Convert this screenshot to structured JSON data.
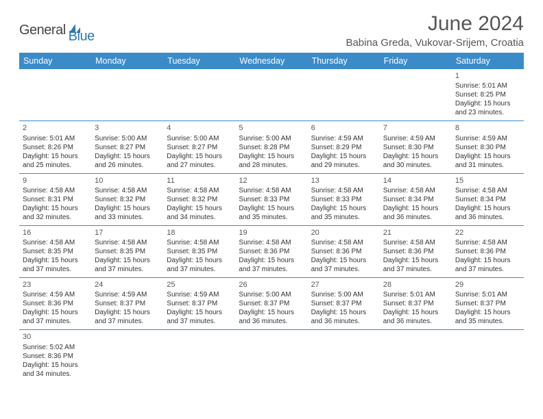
{
  "logo": {
    "general": "General",
    "blue": "Blue",
    "accent_color": "#2a7ab8"
  },
  "title": "June 2024",
  "location": "Babina Greda, Vukovar-Srijem, Croatia",
  "colors": {
    "header_bg": "#3b8bc8",
    "header_text": "#ffffff",
    "row_divider": "#3b8bc8",
    "text": "#333333",
    "title_text": "#555555"
  },
  "day_headers": [
    "Sunday",
    "Monday",
    "Tuesday",
    "Wednesday",
    "Thursday",
    "Friday",
    "Saturday"
  ],
  "weeks": [
    [
      null,
      null,
      null,
      null,
      null,
      null,
      {
        "n": "1",
        "sr": "5:01 AM",
        "ss": "8:25 PM",
        "dl1": "15 hours",
        "dl2": "and 23 minutes."
      }
    ],
    [
      {
        "n": "2",
        "sr": "5:01 AM",
        "ss": "8:26 PM",
        "dl1": "15 hours",
        "dl2": "and 25 minutes."
      },
      {
        "n": "3",
        "sr": "5:00 AM",
        "ss": "8:27 PM",
        "dl1": "15 hours",
        "dl2": "and 26 minutes."
      },
      {
        "n": "4",
        "sr": "5:00 AM",
        "ss": "8:27 PM",
        "dl1": "15 hours",
        "dl2": "and 27 minutes."
      },
      {
        "n": "5",
        "sr": "5:00 AM",
        "ss": "8:28 PM",
        "dl1": "15 hours",
        "dl2": "and 28 minutes."
      },
      {
        "n": "6",
        "sr": "4:59 AM",
        "ss": "8:29 PM",
        "dl1": "15 hours",
        "dl2": "and 29 minutes."
      },
      {
        "n": "7",
        "sr": "4:59 AM",
        "ss": "8:30 PM",
        "dl1": "15 hours",
        "dl2": "and 30 minutes."
      },
      {
        "n": "8",
        "sr": "4:59 AM",
        "ss": "8:30 PM",
        "dl1": "15 hours",
        "dl2": "and 31 minutes."
      }
    ],
    [
      {
        "n": "9",
        "sr": "4:58 AM",
        "ss": "8:31 PM",
        "dl1": "15 hours",
        "dl2": "and 32 minutes."
      },
      {
        "n": "10",
        "sr": "4:58 AM",
        "ss": "8:32 PM",
        "dl1": "15 hours",
        "dl2": "and 33 minutes."
      },
      {
        "n": "11",
        "sr": "4:58 AM",
        "ss": "8:32 PM",
        "dl1": "15 hours",
        "dl2": "and 34 minutes."
      },
      {
        "n": "12",
        "sr": "4:58 AM",
        "ss": "8:33 PM",
        "dl1": "15 hours",
        "dl2": "and 35 minutes."
      },
      {
        "n": "13",
        "sr": "4:58 AM",
        "ss": "8:33 PM",
        "dl1": "15 hours",
        "dl2": "and 35 minutes."
      },
      {
        "n": "14",
        "sr": "4:58 AM",
        "ss": "8:34 PM",
        "dl1": "15 hours",
        "dl2": "and 36 minutes."
      },
      {
        "n": "15",
        "sr": "4:58 AM",
        "ss": "8:34 PM",
        "dl1": "15 hours",
        "dl2": "and 36 minutes."
      }
    ],
    [
      {
        "n": "16",
        "sr": "4:58 AM",
        "ss": "8:35 PM",
        "dl1": "15 hours",
        "dl2": "and 37 minutes."
      },
      {
        "n": "17",
        "sr": "4:58 AM",
        "ss": "8:35 PM",
        "dl1": "15 hours",
        "dl2": "and 37 minutes."
      },
      {
        "n": "18",
        "sr": "4:58 AM",
        "ss": "8:35 PM",
        "dl1": "15 hours",
        "dl2": "and 37 minutes."
      },
      {
        "n": "19",
        "sr": "4:58 AM",
        "ss": "8:36 PM",
        "dl1": "15 hours",
        "dl2": "and 37 minutes."
      },
      {
        "n": "20",
        "sr": "4:58 AM",
        "ss": "8:36 PM",
        "dl1": "15 hours",
        "dl2": "and 37 minutes."
      },
      {
        "n": "21",
        "sr": "4:58 AM",
        "ss": "8:36 PM",
        "dl1": "15 hours",
        "dl2": "and 37 minutes."
      },
      {
        "n": "22",
        "sr": "4:58 AM",
        "ss": "8:36 PM",
        "dl1": "15 hours",
        "dl2": "and 37 minutes."
      }
    ],
    [
      {
        "n": "23",
        "sr": "4:59 AM",
        "ss": "8:36 PM",
        "dl1": "15 hours",
        "dl2": "and 37 minutes."
      },
      {
        "n": "24",
        "sr": "4:59 AM",
        "ss": "8:37 PM",
        "dl1": "15 hours",
        "dl2": "and 37 minutes."
      },
      {
        "n": "25",
        "sr": "4:59 AM",
        "ss": "8:37 PM",
        "dl1": "15 hours",
        "dl2": "and 37 minutes."
      },
      {
        "n": "26",
        "sr": "5:00 AM",
        "ss": "8:37 PM",
        "dl1": "15 hours",
        "dl2": "and 36 minutes."
      },
      {
        "n": "27",
        "sr": "5:00 AM",
        "ss": "8:37 PM",
        "dl1": "15 hours",
        "dl2": "and 36 minutes."
      },
      {
        "n": "28",
        "sr": "5:01 AM",
        "ss": "8:37 PM",
        "dl1": "15 hours",
        "dl2": "and 36 minutes."
      },
      {
        "n": "29",
        "sr": "5:01 AM",
        "ss": "8:37 PM",
        "dl1": "15 hours",
        "dl2": "and 35 minutes."
      }
    ],
    [
      {
        "n": "30",
        "sr": "5:02 AM",
        "ss": "8:36 PM",
        "dl1": "15 hours",
        "dl2": "and 34 minutes."
      },
      null,
      null,
      null,
      null,
      null,
      null
    ]
  ],
  "labels": {
    "sunrise": "Sunrise: ",
    "sunset": "Sunset: ",
    "daylight": "Daylight: "
  }
}
